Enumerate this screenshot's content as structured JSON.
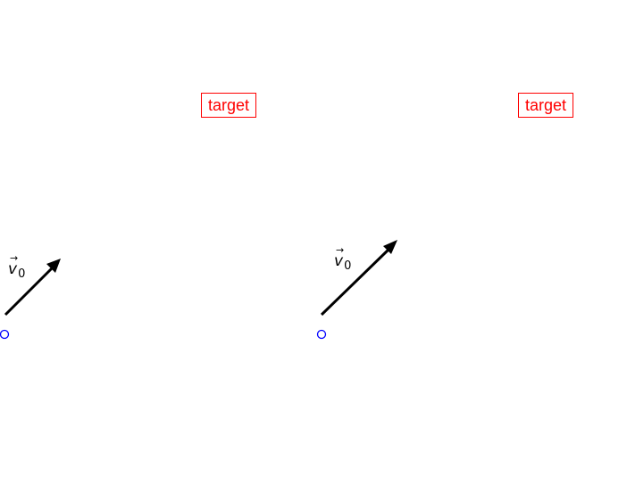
{
  "panels": [
    {
      "id": "left",
      "target_label": "target",
      "vector_symbol": "v",
      "vector_arrow": "→",
      "vector_subscript": "0"
    },
    {
      "id": "right",
      "target_label": "target",
      "vector_symbol": "v",
      "vector_arrow": "→",
      "vector_subscript": "0"
    }
  ],
  "colors": {
    "target": "#ff0000",
    "origin_marker": "#0000ff",
    "vector": "#000000"
  }
}
